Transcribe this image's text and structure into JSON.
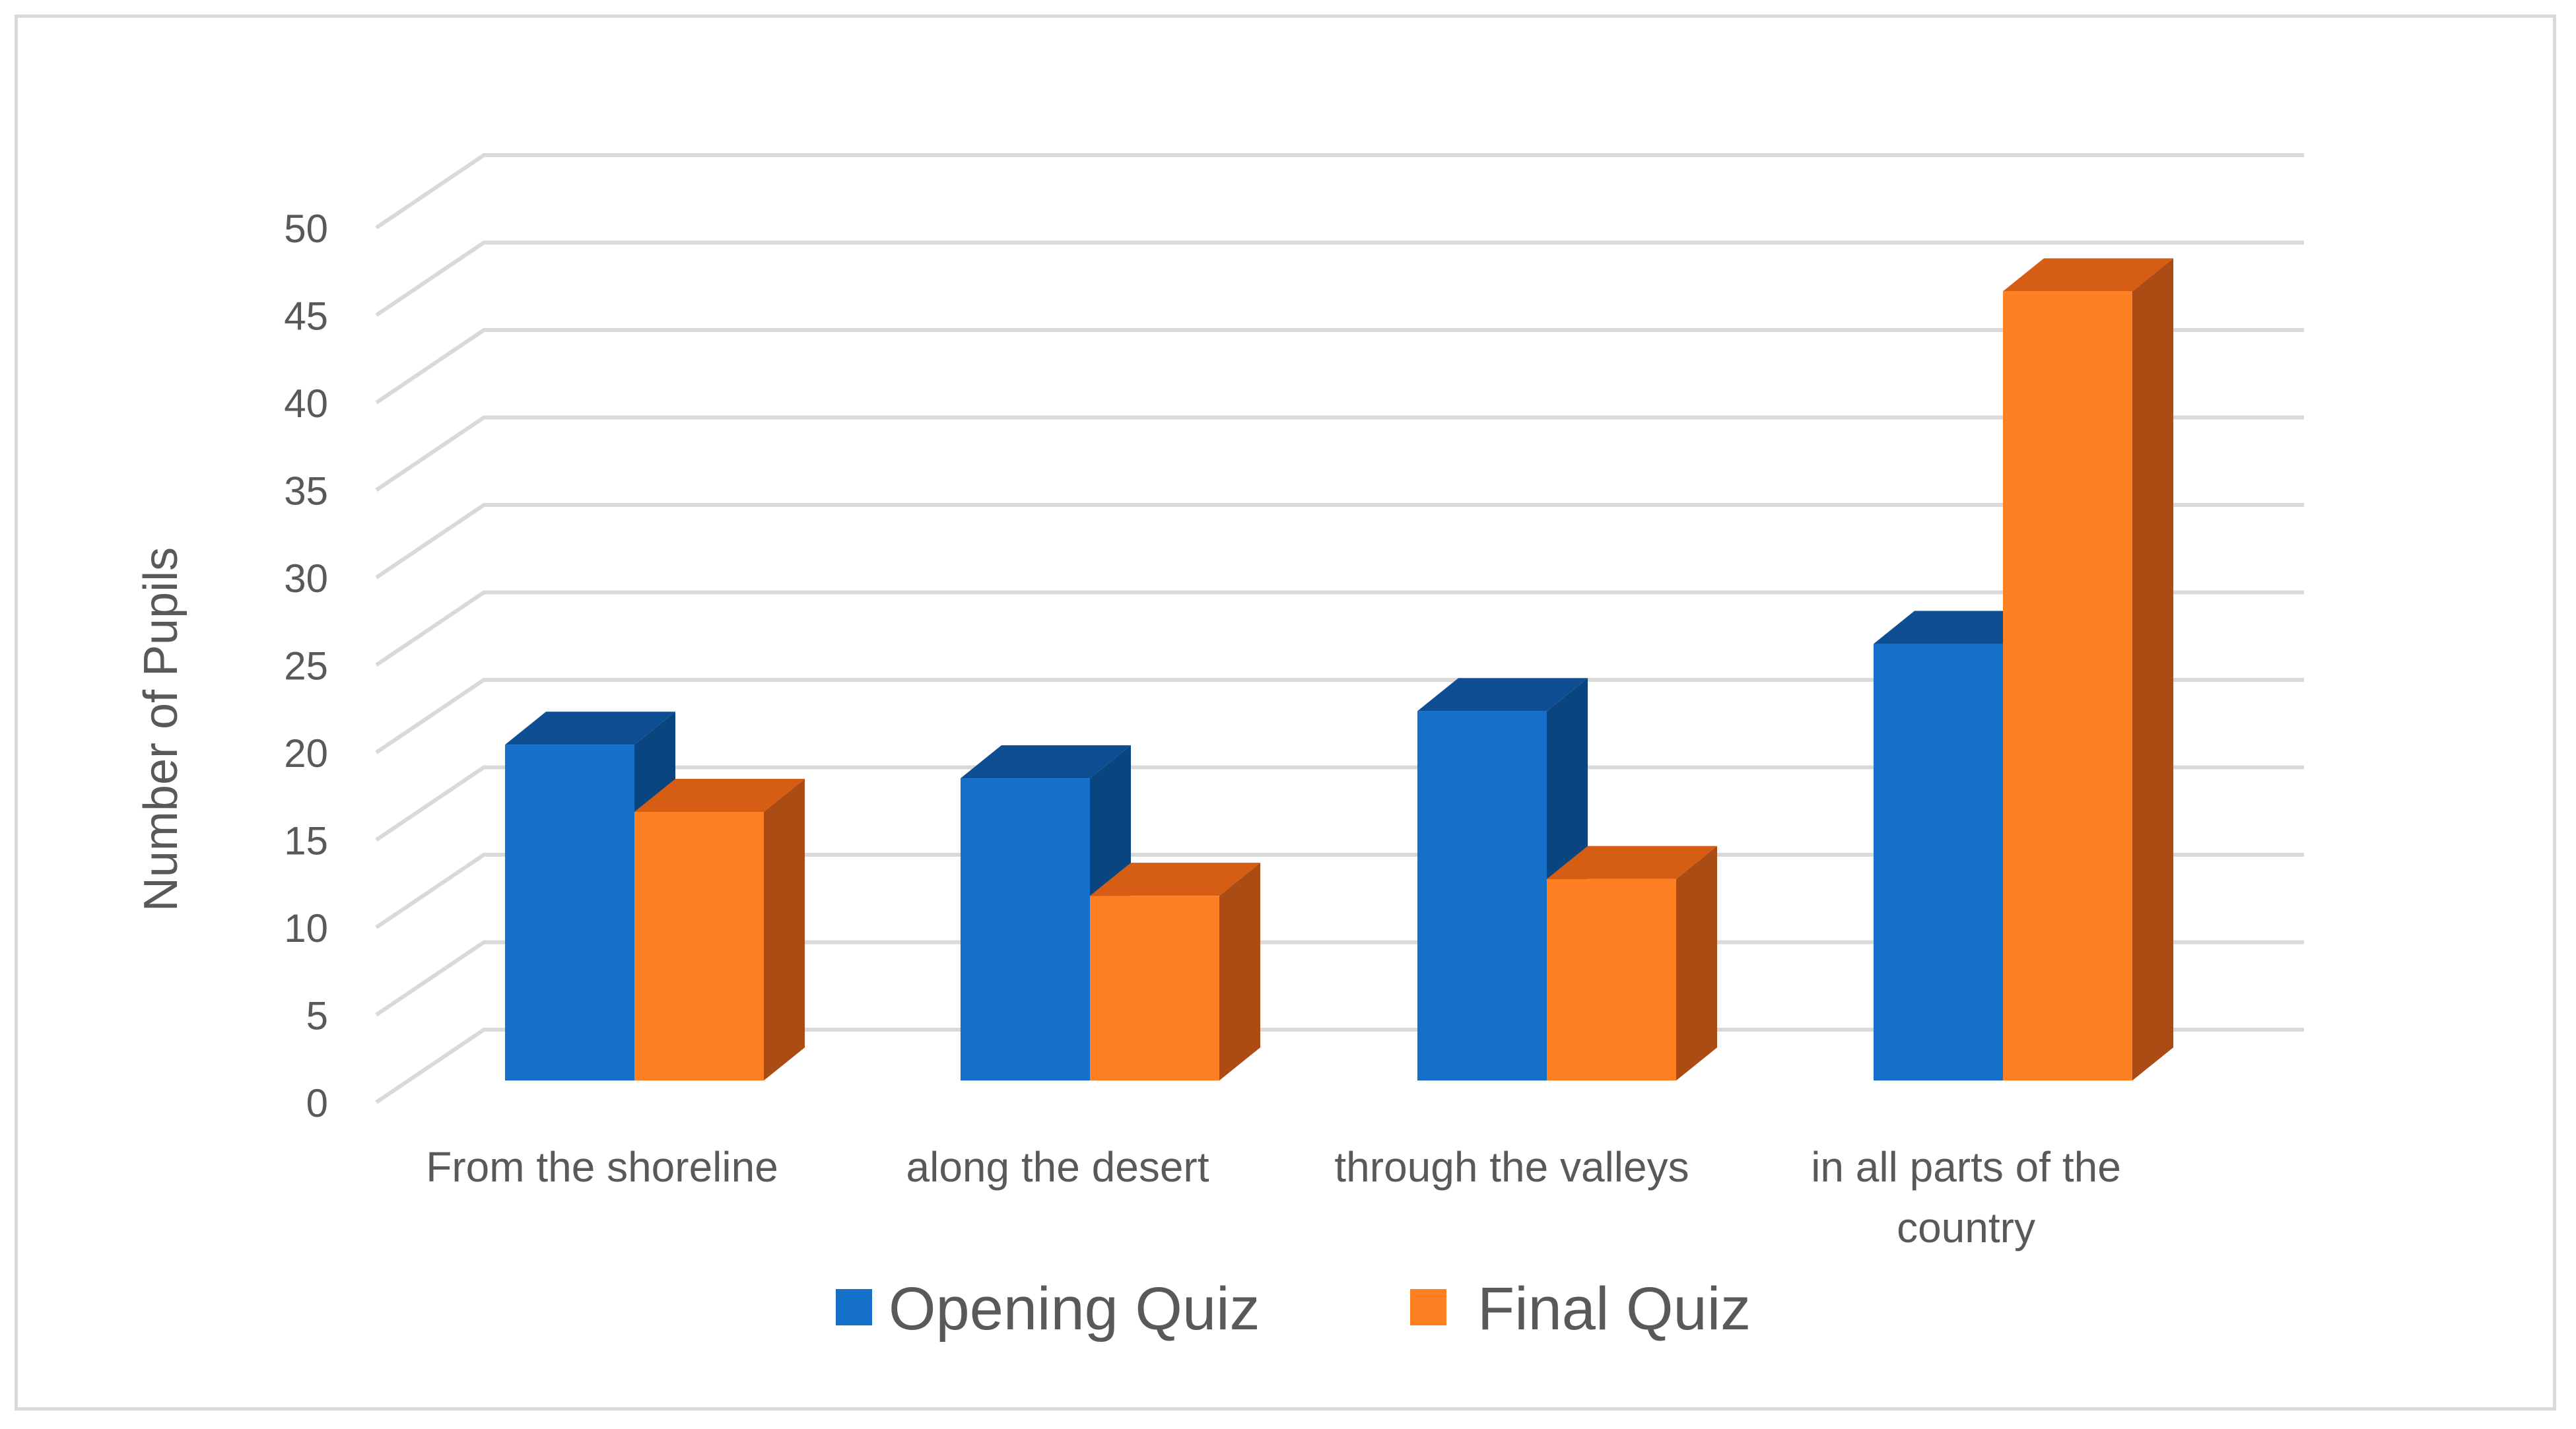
{
  "chart_data": {
    "type": "bar",
    "title": "",
    "xlabel": "",
    "ylabel": "Number of Pupils",
    "ylim": [
      0,
      50
    ],
    "y_ticks": [
      "0",
      "5",
      "10",
      "15",
      "20",
      "25",
      "30",
      "35",
      "40",
      "45",
      "50"
    ],
    "categories": [
      [
        "From the shoreline"
      ],
      [
        "along the desert"
      ],
      [
        "through the valleys"
      ],
      [
        "in all parts of the",
        "country"
      ]
    ],
    "series": [
      {
        "name": "Opening Quiz",
        "values": [
          20,
          18,
          22,
          26
        ],
        "color": "#1570C9",
        "top": "#0E4F93",
        "side": "#0B4580"
      },
      {
        "name": "Final Quiz",
        "values": [
          16,
          11,
          12,
          47
        ],
        "color": "#FF7F23",
        "top": "#D55D14",
        "side": "#AA4C13"
      }
    ],
    "grid": true,
    "legend": "bottom",
    "style": "3d-clustered-column"
  }
}
